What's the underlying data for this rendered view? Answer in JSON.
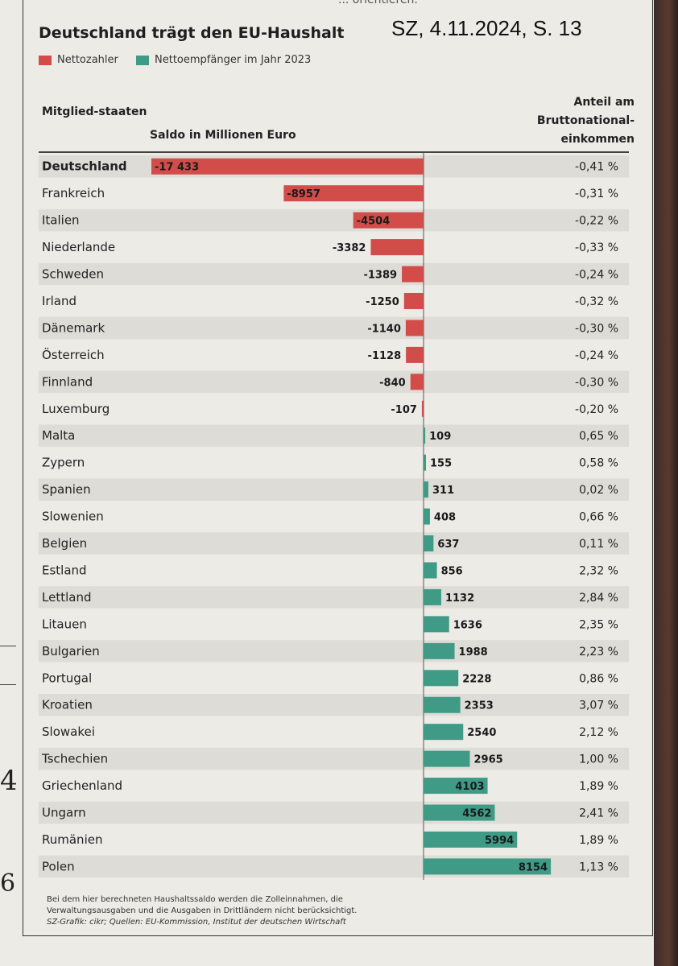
{
  "header": {
    "title": "Deutschland trägt den EU-Haushalt",
    "stamp": "SZ, 4.11.2024, S. 13",
    "top_scrap": "... orientieren."
  },
  "legend": {
    "payer_label": "Nettozahler",
    "receiver_label": "Nettoempfänger im Jahr 2023"
  },
  "columns": {
    "country": "Mitglied-staaten",
    "saldo": "Saldo in Millionen Euro",
    "share": "Anteil am Bruttonational-einkommen"
  },
  "colors": {
    "payer": "#d24d4a",
    "receiver": "#3f9a86",
    "row_band": "#dedcd6"
  },
  "footer": {
    "note": "Bei dem hier berechneten Haushaltssaldo werden die Zolleinnahmen, die Verwaltungsausgaben und die Ausgaben in Drittländern nicht berücksichtigt.",
    "source": "SZ-Grafik: cikr; Quellen: EU-Kommission, Institut der deutschen Wirtschaft"
  },
  "margin_marks": {
    "digit_a": "4",
    "digit_b": "6"
  },
  "chart_data": {
    "type": "bar",
    "orientation": "horizontal",
    "title": "Deutschland trägt den EU-Haushalt",
    "xlabel": "Saldo in Millionen Euro",
    "categories": [
      "Deutschland",
      "Frankreich",
      "Italien",
      "Niederlande",
      "Schweden",
      "Irland",
      "Dänemark",
      "Österreich",
      "Finnland",
      "Luxemburg",
      "Malta",
      "Zypern",
      "Spanien",
      "Slowenien",
      "Belgien",
      "Estland",
      "Lettland",
      "Litauen",
      "Bulgarien",
      "Portugal",
      "Kroatien",
      "Slowakei",
      "Tschechien",
      "Griechenland",
      "Ungarn",
      "Rumänien",
      "Polen"
    ],
    "values": [
      -17433,
      -8957,
      -4504,
      -3382,
      -1389,
      -1250,
      -1140,
      -1128,
      -840,
      -107,
      109,
      155,
      311,
      408,
      637,
      856,
      1132,
      1636,
      1988,
      2228,
      2353,
      2540,
      2965,
      4103,
      4562,
      5994,
      8154
    ],
    "value_labels": [
      "-17 433",
      "-8957",
      "-4504",
      "-3382",
      "-1389",
      "-1250",
      "-1140",
      "-1128",
      "-840",
      "-107",
      "109",
      "155",
      "311",
      "408",
      "637",
      "856",
      "1132",
      "1636",
      "1988",
      "2228",
      "2353",
      "2540",
      "2965",
      "4103",
      "4562",
      "5994",
      "8154"
    ],
    "share_labels": [
      "-0,41 %",
      "-0,31 %",
      "-0,22 %",
      "-0,33 %",
      "-0,24 %",
      "-0,32 %",
      "-0,30 %",
      "-0,24 %",
      "-0,30 %",
      "-0,20 %",
      "0,65 %",
      "0,58 %",
      "0,02 %",
      "0,66 %",
      "0,11 %",
      "2,32 %",
      "2,84 %",
      "2,35 %",
      "2,23 %",
      "0,86 %",
      "3,07 %",
      "2,12 %",
      "1,00 %",
      "1,89 %",
      "2,41 %",
      "1,89 %",
      "1,13 %"
    ],
    "xlim": [
      -17433,
      8154
    ]
  }
}
